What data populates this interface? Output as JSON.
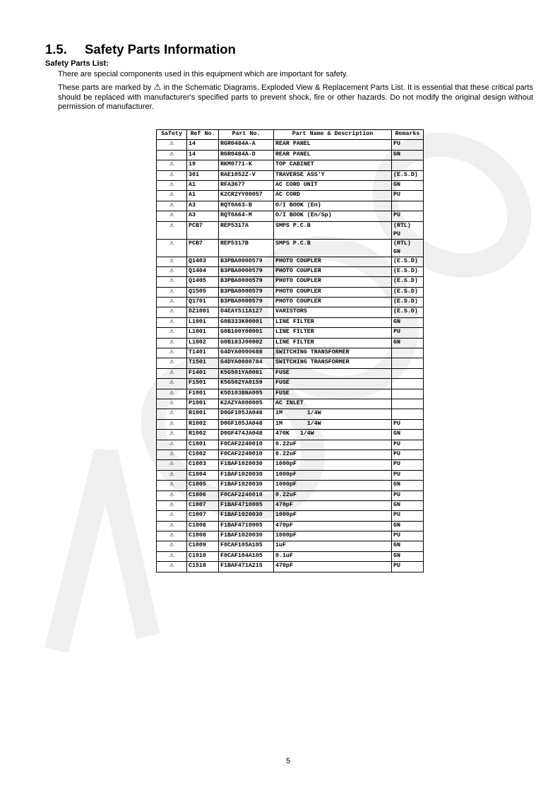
{
  "section": {
    "number": "1.5.",
    "title": "Safety Parts Information"
  },
  "subtitle": "Safety Parts List:",
  "para1": "There are special components used in this equipment which are important for safety.",
  "para2_before": "These parts are marked by ",
  "para2_symbol": "⚠",
  "para2_after": " in the Schematic Diagrams, Exploded View & Replacement Parts List. It is essential that these critical parts should be replaced with manufacturer's specified parts to prevent shock, fire or other hazards. Do not modify the original design without permission of manufacturer.",
  "table": {
    "headers": [
      "Safety",
      "Ref No.",
      "Part No.",
      "Part Name & Description",
      "Remarks"
    ],
    "safety_symbol": "⚠",
    "rows": [
      [
        "14",
        "RGR0484A-A",
        "REAR PANEL",
        "PU"
      ],
      [
        "14",
        "RGR0484A-D",
        "REAR PANEL",
        "GN"
      ],
      [
        "19",
        "RKM0771-K",
        "TOP CABINET",
        ""
      ],
      [
        "301",
        "RAE1052Z-V",
        "TRAVERSE ASS'Y",
        "(E.S.D)"
      ],
      [
        "A1",
        "RFA3677",
        "AC CORD UNIT",
        "GN"
      ],
      [
        "A1",
        "K2CR2YY00057",
        "AC CORD",
        "PU"
      ],
      [
        "A3",
        "RQT0A63-B",
        "O/I BOOK (En)",
        ""
      ],
      [
        "A3",
        "RQT0A64-M",
        "O/I BOOK (En/Sp)",
        "PU"
      ],
      [
        "PCB7",
        "REP5317A",
        "SMPS P.C.B",
        "(RTL)\nPU"
      ],
      [
        "PCB7",
        "REP5317B",
        "SMPS P.C.B",
        "(RTL)\nGN"
      ],
      [
        "Q1403",
        "B3PBA0000579",
        "PHOTO COUPLER",
        "(E.S.D)"
      ],
      [
        "Q1404",
        "B3PBA0000579",
        "PHOTO COUPLER",
        "(E.S.D)"
      ],
      [
        "Q1405",
        "B3PBA0000579",
        "PHOTO COUPLER",
        "(E.S.D)"
      ],
      [
        "Q1505",
        "B3PBA0000579",
        "PHOTO COUPLER",
        "(E.S.D)"
      ],
      [
        "Q1701",
        "B3PBA0000579",
        "PHOTO COUPLER",
        "(E.S.D)"
      ],
      [
        "DZ1001",
        "D4EAY511A127",
        "VARISTORS",
        "(E.S.D)"
      ],
      [
        "L1001",
        "G0B333K00001",
        "LINE FILTER",
        "GN"
      ],
      [
        "L1001",
        "G0B100Y00001",
        "LINE FILTER",
        "PU"
      ],
      [
        "L1002",
        "G0B183J00002",
        "LINE FILTER",
        "GN"
      ],
      [
        "T1401",
        "G4DYA0000688",
        "SWITCHING TRANSFORMER",
        ""
      ],
      [
        "T1501",
        "G4DYA0000784",
        "SWITCHING TRANSFORMER",
        ""
      ],
      [
        "F1401",
        "K5G501YA0081",
        "FUSE",
        ""
      ],
      [
        "F1501",
        "K5G502YA0159",
        "FUSE",
        ""
      ],
      [
        "F1001",
        "K5D103BNA005",
        "FUSE",
        ""
      ],
      [
        "P1001",
        "K2AZYA000005",
        "AC INLET",
        ""
      ],
      [
        "R1001",
        "D0GF105JA048",
        "1M       1/4W",
        ""
      ],
      [
        "R1002",
        "D0GF105JA048",
        "1M       1/4W",
        "PU"
      ],
      [
        "R1002",
        "D0GF474JA048",
        "470K   1/4W",
        "GN"
      ],
      [
        "C1001",
        "F0CAF2240010",
        "0.22uF",
        "PU"
      ],
      [
        "C1002",
        "F0CAF2240010",
        "0.22uF",
        "PU"
      ],
      [
        "C1003",
        "F1BAF1020030",
        "1000pF",
        "PU"
      ],
      [
        "C1004",
        "F1BAF1020030",
        "1000pF",
        "PU"
      ],
      [
        "C1005",
        "F1BAF1020030",
        "1000pF",
        "GN"
      ],
      [
        "C1006",
        "F0CAF2240010",
        "0.22uF",
        "PU"
      ],
      [
        "C1007",
        "F1BAF4710005",
        "470pF",
        "GN"
      ],
      [
        "C1007",
        "F1BAF1020030",
        "1000pF",
        "PU"
      ],
      [
        "C1008",
        "F1BAF4710005",
        "470pF",
        "GN"
      ],
      [
        "C1008",
        "F1BAF1020030",
        "1000pF",
        "PU"
      ],
      [
        "C1009",
        "F0CAF105A105",
        "1uF",
        "GN"
      ],
      [
        "C1010",
        "F0CAF104A105",
        "0.1uF",
        "GN"
      ],
      [
        "C1518",
        "F1BAF471A215",
        "470pF",
        "PU"
      ]
    ]
  },
  "page_number": "5",
  "colors": {
    "watermark": "#ececec"
  }
}
